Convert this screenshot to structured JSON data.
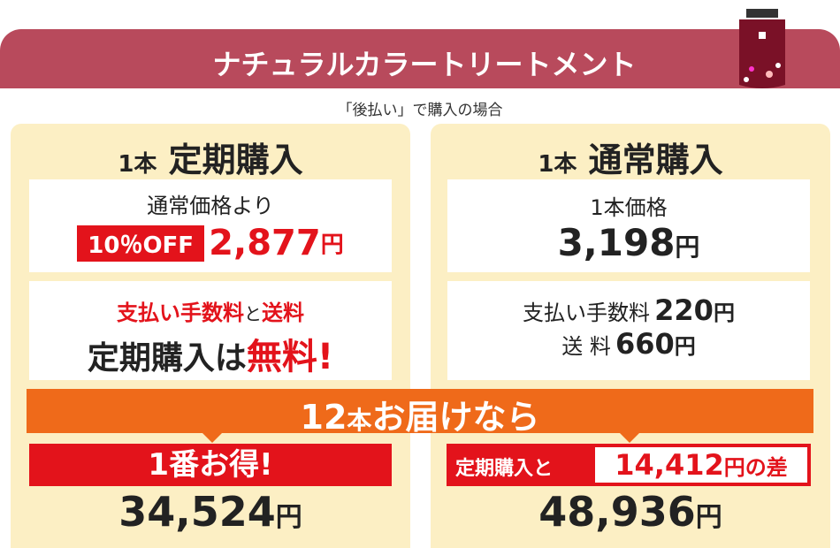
{
  "header": {
    "title": "ナチュラルカラートリートメント",
    "subtitle": "「後払い」で購入の場合"
  },
  "left": {
    "count": "1本",
    "name": "定期購入",
    "box1": {
      "label": "通常価格より",
      "badge": "10％OFF",
      "price": "2,877",
      "unit": "円"
    },
    "box2": {
      "fee": "支払い手数料",
      "and": "と",
      "shipping": "送料",
      "line2": "定期購入は",
      "free": "無料!"
    },
    "result": {
      "banner": "1番お得!",
      "total": "34,524",
      "unit": "円"
    }
  },
  "right": {
    "count": "1本",
    "name": "通常購入",
    "box1": {
      "label": "1本価格",
      "price": "3,198",
      "unit": "円"
    },
    "box2": {
      "fee_label": "支払い手数料",
      "fee": "220",
      "fee_unit": "円",
      "shipping_label": "送 料",
      "shipping": "660",
      "shipping_unit": "円"
    },
    "result": {
      "banner": "定期購入と",
      "diff": "14,412",
      "diff_unit": "円の差",
      "total": "48,936",
      "unit": "円"
    }
  },
  "band": {
    "count": "12",
    "unit": "本",
    "text": "お届けなら"
  }
}
